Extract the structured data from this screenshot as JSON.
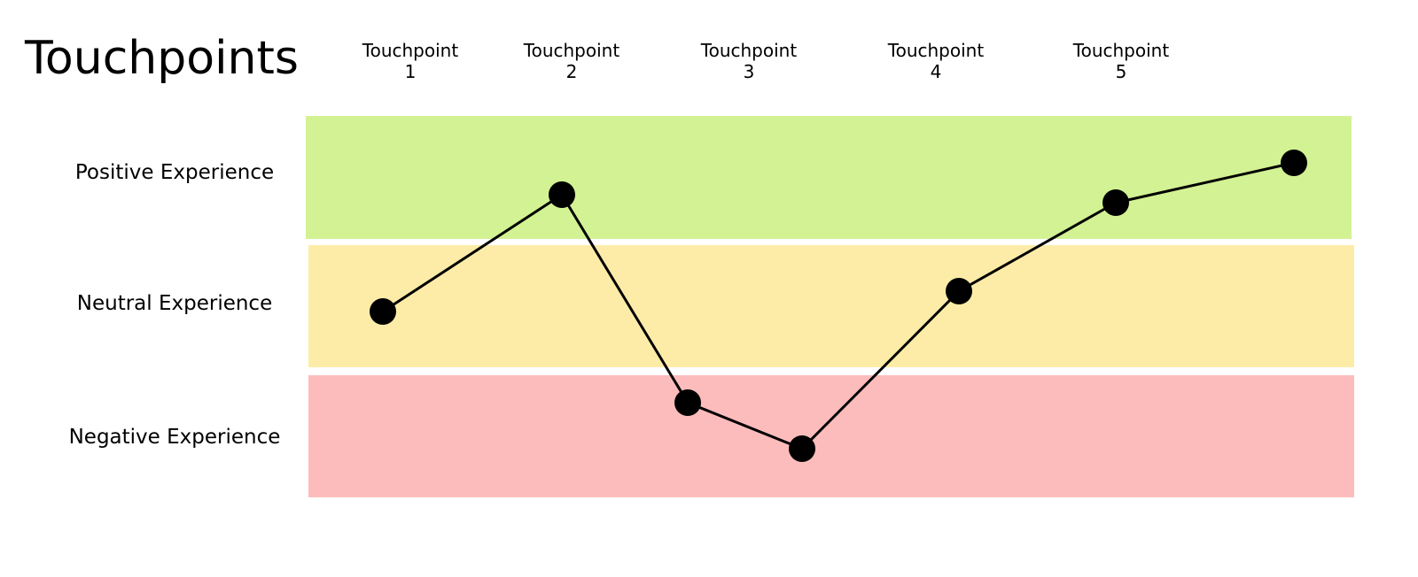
{
  "title": "Touchpoints",
  "touchpoints": [
    "Touchpoint 1",
    "Touchpoint 2",
    "Touchpoint 3",
    "Touchpoint 4",
    "Touchpoint 5"
  ],
  "bands": [
    "Positive Experience",
    "Neutral Experience",
    "Negative Experience"
  ]
}
